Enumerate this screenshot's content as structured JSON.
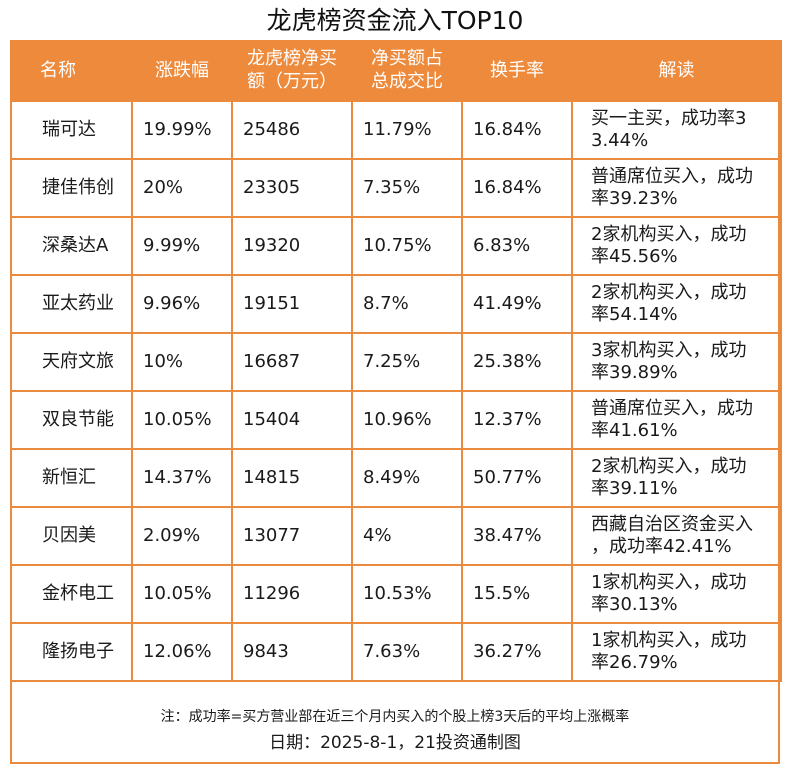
{
  "title": "龙虎榜资金流入TOP10",
  "headers": {
    "name": "名称",
    "change": "涨跌幅",
    "net_buy_line1": "龙虎榜净买",
    "net_buy_line2": "额（万元）",
    "ratio_line1": "净买额占",
    "ratio_line2": "总成交比",
    "turnover": "换手率",
    "reading": "解读"
  },
  "rows": [
    {
      "name": "瑞可达",
      "change": "19.99%",
      "net_buy": "25486",
      "ratio": "11.79%",
      "turnover": "16.84%",
      "reading_l1": "买一主买，成功率3",
      "reading_l2": "3.44%"
    },
    {
      "name": "捷佳伟创",
      "change": "20%",
      "net_buy": "23305",
      "ratio": "7.35%",
      "turnover": "16.84%",
      "reading_l1": "普通席位买入，成功",
      "reading_l2": "率39.23%"
    },
    {
      "name": "深桑达A",
      "change": "9.99%",
      "net_buy": "19320",
      "ratio": "10.75%",
      "turnover": "6.83%",
      "reading_l1": "2家机构买入，成功",
      "reading_l2": "率45.56%"
    },
    {
      "name": "亚太药业",
      "change": "9.96%",
      "net_buy": "19151",
      "ratio": "8.7%",
      "turnover": "41.49%",
      "reading_l1": "2家机构买入，成功",
      "reading_l2": "率54.14%"
    },
    {
      "name": "天府文旅",
      "change": "10%",
      "net_buy": "16687",
      "ratio": "7.25%",
      "turnover": "25.38%",
      "reading_l1": "3家机构买入，成功",
      "reading_l2": "率39.89%"
    },
    {
      "name": "双良节能",
      "change": "10.05%",
      "net_buy": "15404",
      "ratio": "10.96%",
      "turnover": "12.37%",
      "reading_l1": "普通席位买入，成功",
      "reading_l2": "率41.61%"
    },
    {
      "name": "新恒汇",
      "change": "14.37%",
      "net_buy": "14815",
      "ratio": "8.49%",
      "turnover": "50.77%",
      "reading_l1": "2家机构买入，成功",
      "reading_l2": "率39.11%"
    },
    {
      "name": "贝因美",
      "change": "2.09%",
      "net_buy": "13077",
      "ratio": "4%",
      "turnover": "38.47%",
      "reading_l1": "西藏自治区资金买入",
      "reading_l2": "，成功率42.41%"
    },
    {
      "name": "金杯电工",
      "change": "10.05%",
      "net_buy": "11296",
      "ratio": "10.53%",
      "turnover": "15.5%",
      "reading_l1": "1家机构买入，成功",
      "reading_l2": "率30.13%"
    },
    {
      "name": "隆扬电子",
      "change": "12.06%",
      "net_buy": "9843",
      "ratio": "7.63%",
      "turnover": "36.27%",
      "reading_l1": "1家机构买入，成功",
      "reading_l2": "率26.79%"
    }
  ],
  "footer": {
    "note": "注：成功率=买方营业部在近三个月内买入的个股上榜3天后的平均上涨概率",
    "date": "日期：2025-8-1，21投资通制图"
  },
  "colors": {
    "header_bg": "#ee8a3c",
    "border": "#e98a3f"
  }
}
